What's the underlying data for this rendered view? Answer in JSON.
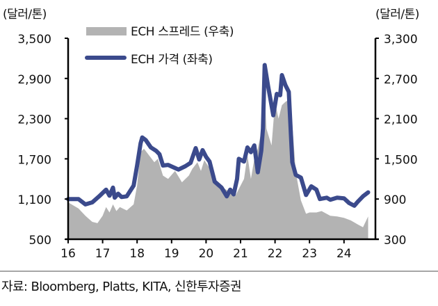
{
  "axes": {
    "left_unit": "(달러/톤)",
    "right_unit": "(달러/톤)",
    "left_ticks": [
      "3,500",
      "2,900",
      "2,300",
      "1,700",
      "1,100",
      "500"
    ],
    "right_ticks": [
      "3,300",
      "2,700",
      "2,100",
      "1,500",
      "900",
      "300"
    ],
    "x_ticks": [
      "16",
      "17",
      "18",
      "19",
      "20",
      "21",
      "22",
      "23",
      "24"
    ]
  },
  "legend": {
    "spread_label": "ECH 스프레드 (우축)",
    "price_label": "ECH 가격 (좌축)"
  },
  "colors": {
    "price_line": "#3b4a8c",
    "spread_area": "#b3b3b3"
  },
  "source": "자료: Bloomberg, Platts, KITA, 신한투자증권",
  "chart_data": {
    "type": "line+area",
    "title": "",
    "xlabel": "",
    "ylabel_left": "(달러/톤)",
    "ylabel_right": "(달러/톤)",
    "ylim_left": [
      500,
      3500
    ],
    "ylim_right": [
      300,
      3300
    ],
    "x_range": [
      2016,
      2024.75
    ],
    "legend_position": "top-left",
    "grid": false,
    "series": [
      {
        "name": "ECH 가격 (좌축)",
        "axis": "left",
        "type": "line",
        "x": [
          16.0,
          16.3,
          16.5,
          16.7,
          16.9,
          17.1,
          17.2,
          17.3,
          17.35,
          17.45,
          17.55,
          17.7,
          17.9,
          18.0,
          18.1,
          18.15,
          18.25,
          18.4,
          18.55,
          18.65,
          18.75,
          18.9,
          19.2,
          19.4,
          19.55,
          19.7,
          19.8,
          19.9,
          20.0,
          20.1,
          20.25,
          20.45,
          20.6,
          20.7,
          20.8,
          20.9,
          20.95,
          21.1,
          21.2,
          21.3,
          21.4,
          21.5,
          21.6,
          21.65,
          21.7,
          21.8,
          21.95,
          22.05,
          22.15,
          22.2,
          22.3,
          22.4,
          22.5,
          22.6,
          22.75,
          22.9,
          23.05,
          23.2,
          23.3,
          23.5,
          23.6,
          23.8,
          24.0,
          24.15,
          24.3,
          24.4,
          24.55,
          24.7
        ],
        "values": [
          1100,
          1100,
          1020,
          1050,
          1140,
          1240,
          1150,
          1270,
          1120,
          1180,
          1130,
          1140,
          1300,
          1600,
          1930,
          2020,
          1980,
          1870,
          1820,
          1770,
          1600,
          1610,
          1540,
          1590,
          1640,
          1860,
          1690,
          1830,
          1730,
          1660,
          1360,
          1270,
          1140,
          1240,
          1170,
          1400,
          1700,
          1660,
          1870,
          1800,
          1900,
          1500,
          1820,
          2150,
          3100,
          2780,
          2350,
          2670,
          2650,
          2950,
          2800,
          2700,
          1650,
          1460,
          1420,
          1160,
          1290,
          1240,
          1100,
          1120,
          1090,
          1120,
          1110,
          1040,
          1000,
          1060,
          1140,
          1200
        ]
      },
      {
        "name": "ECH 스프레드 (우축)",
        "axis": "right",
        "type": "area",
        "x": [
          16.0,
          16.3,
          16.5,
          16.7,
          16.85,
          17.0,
          17.1,
          17.2,
          17.3,
          17.4,
          17.5,
          17.7,
          17.9,
          18.0,
          18.1,
          18.2,
          18.35,
          18.5,
          18.6,
          18.75,
          18.9,
          19.1,
          19.3,
          19.5,
          19.6,
          19.75,
          19.85,
          19.95,
          20.05,
          20.2,
          20.4,
          20.55,
          20.7,
          20.85,
          20.95,
          21.1,
          21.2,
          21.3,
          21.4,
          21.5,
          21.6,
          21.7,
          21.75,
          21.9,
          22.0,
          22.1,
          22.2,
          22.3,
          22.45,
          22.6,
          22.75,
          22.9,
          23.0,
          23.2,
          23.35,
          23.6,
          23.8,
          24.0,
          24.2,
          24.4,
          24.55,
          24.7
        ],
        "values": [
          850,
          760,
          650,
          560,
          540,
          650,
          780,
          700,
          820,
          720,
          780,
          730,
          820,
          1100,
          1600,
          1650,
          1550,
          1450,
          1500,
          1250,
          1200,
          1320,
          1150,
          1250,
          1350,
          1450,
          1320,
          1480,
          1400,
          1300,
          1050,
          1050,
          1000,
          950,
          1050,
          1200,
          1550,
          1200,
          1500,
          1650,
          1900,
          2500,
          1950,
          1700,
          2350,
          2100,
          2300,
          2350,
          2400,
          1300,
          880,
          680,
          700,
          700,
          720,
          650,
          640,
          620,
          580,
          520,
          480,
          640
        ]
      }
    ]
  }
}
